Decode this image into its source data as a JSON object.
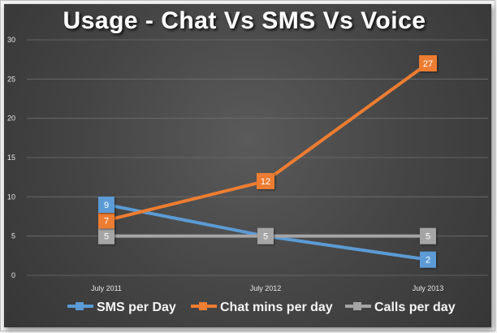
{
  "chart_data": {
    "type": "line",
    "title": "Usage - Chat Vs SMS Vs Voice",
    "categories": [
      "July 2011",
      "July 2012",
      "July 2013"
    ],
    "ylim": [
      0,
      30
    ],
    "yticks": [
      0,
      5,
      10,
      15,
      20,
      25,
      30
    ],
    "grid": true,
    "legend_position": "bottom",
    "series": [
      {
        "name": "SMS per Day",
        "values": [
          9,
          5,
          2
        ],
        "labels": [
          "9",
          "",
          "2"
        ],
        "color": "#5b9bd5"
      },
      {
        "name": "Chat mins per day",
        "values": [
          7,
          12,
          27
        ],
        "labels": [
          "7",
          "12",
          "27"
        ],
        "color": "#ed7d31"
      },
      {
        "name": "Calls per day",
        "values": [
          5,
          5,
          5
        ],
        "labels": [
          "5",
          "5",
          "5"
        ],
        "color": "#a5a5a5"
      }
    ]
  }
}
